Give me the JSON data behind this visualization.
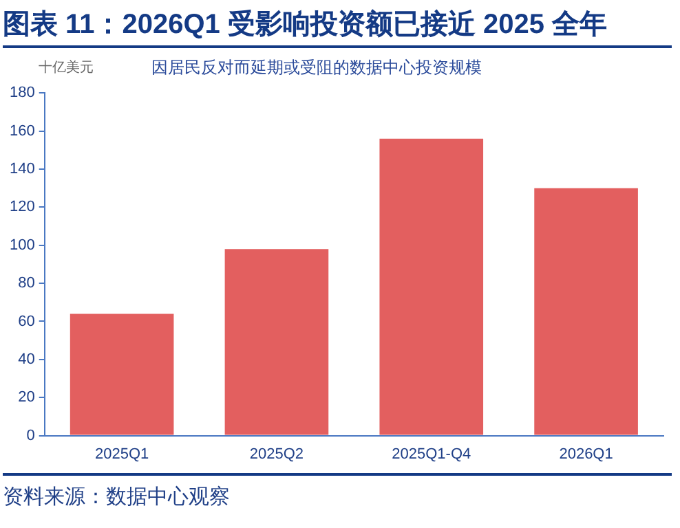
{
  "chart_data": {
    "type": "bar",
    "title": "图表 11：2026Q1 受影响投资额已接近 2025 全年",
    "subtitle": "因居民反对而延期或受阻的数据中心投资规模",
    "ylabel": "十亿美元",
    "categories": [
      "2025Q1",
      "2025Q2",
      "2025Q1-Q4",
      "2026Q1"
    ],
    "values": [
      64,
      98,
      156,
      130
    ],
    "color": "#e35f5f",
    "ylim": [
      0,
      180
    ],
    "yticks": [
      0,
      20,
      40,
      60,
      80,
      100,
      120,
      140,
      160,
      180
    ],
    "grid": false,
    "legend": false,
    "annotations": [
      "资料来源：数据中心观察"
    ]
  }
}
